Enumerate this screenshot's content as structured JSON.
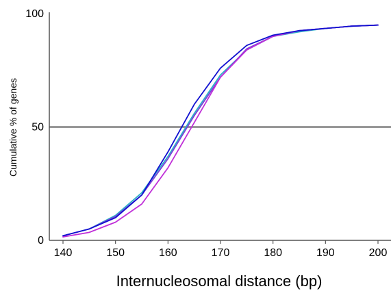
{
  "chart_data": {
    "type": "line",
    "title": "",
    "xlabel": "Internucleosomal distance (bp)",
    "ylabel": "Cumulative % of genes",
    "xlim": [
      140,
      200
    ],
    "ylim": [
      0,
      100
    ],
    "x_ticks": [
      140,
      150,
      160,
      170,
      180,
      190,
      200
    ],
    "y_ticks": [
      0,
      50,
      100
    ],
    "reference_line": {
      "y": 50,
      "color": "#808080"
    },
    "grid": false,
    "legend": "none",
    "x": [
      140,
      145,
      150,
      155,
      160,
      165,
      170,
      175,
      180,
      185,
      190,
      195,
      200
    ],
    "series": [
      {
        "color": "#2ab0c8",
        "values": [
          2,
          5,
          11,
          21,
          37,
          56,
          73,
          84,
          90,
          92,
          93.5,
          94.5,
          95
        ]
      },
      {
        "color": "#7b3fd8",
        "values": [
          2,
          5,
          10.5,
          20,
          36,
          55,
          72,
          84.5,
          90,
          92.5,
          93.5,
          94.5,
          95
        ]
      },
      {
        "color": "#c030d8",
        "values": [
          1.5,
          3.5,
          8,
          16,
          32,
          52,
          72,
          84,
          90,
          92.5,
          93.5,
          94.5,
          95
        ]
      },
      {
        "color": "#1010d0",
        "values": [
          2,
          5,
          10,
          20,
          39,
          60,
          76,
          86,
          90.5,
          92.5,
          93.5,
          94.5,
          95
        ]
      }
    ]
  }
}
